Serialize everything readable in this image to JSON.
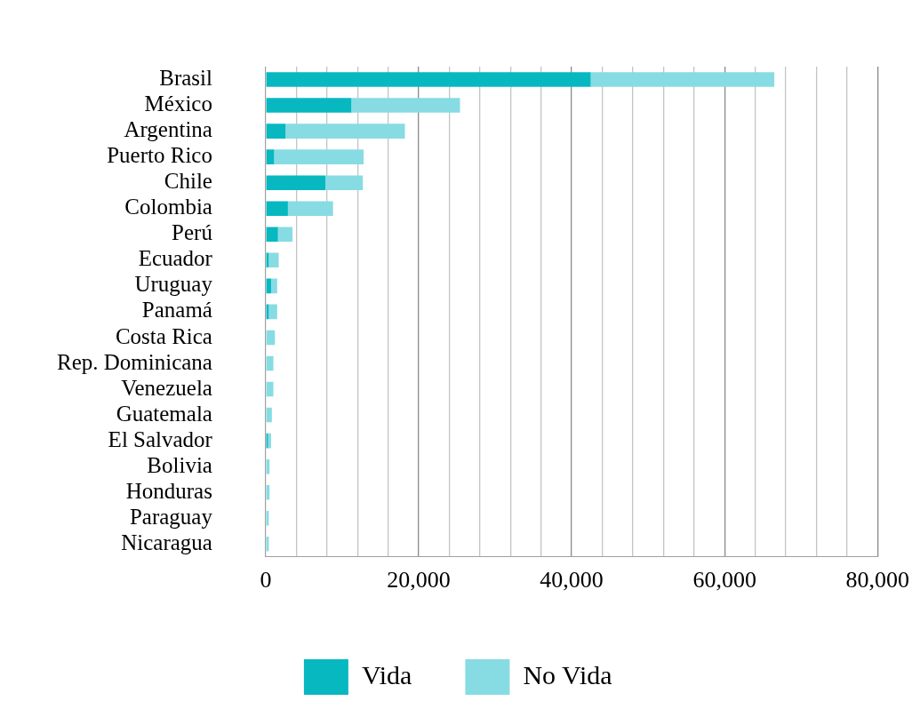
{
  "chart_data": {
    "type": "bar",
    "orientation": "horizontal",
    "stacked": true,
    "categories": [
      "Brasil",
      "México",
      "Argentina",
      "Puerto Rico",
      "Chile",
      "Colombia",
      "Perú",
      "Ecuador",
      "Uruguay",
      "Panamá",
      "Costa Rica",
      "Rep. Dominicana",
      "Venezuela",
      "Guatemala",
      "El Salvador",
      "Bolivia",
      "Honduras",
      "Paraguay",
      "Nicaragua"
    ],
    "series": [
      {
        "name": "Vida",
        "color": "#08b8c1",
        "values": [
          42500,
          11200,
          2600,
          1100,
          7800,
          2900,
          1600,
          400,
          700,
          400,
          0,
          0,
          0,
          0,
          300,
          0,
          0,
          0,
          0
        ]
      },
      {
        "name": "No Vida",
        "color": "#87dce3",
        "values": [
          24000,
          14200,
          15600,
          11700,
          4900,
          5900,
          1900,
          1300,
          800,
          1100,
          1200,
          1000,
          1000,
          800,
          400,
          500,
          500,
          400,
          400
        ]
      }
    ],
    "xlim": [
      0,
      80000
    ],
    "xticks": [
      0,
      {
        "value": 4000,
        "label": null
      },
      {
        "value": 8000,
        "label": null
      },
      {
        "value": 12000,
        "label": null
      },
      {
        "value": 16000,
        "label": null
      },
      {
        "value": 20000,
        "label": "20,000"
      },
      {
        "value": 24000,
        "label": null
      },
      {
        "value": 28000,
        "label": null
      },
      {
        "value": 32000,
        "label": null
      },
      {
        "value": 36000,
        "label": null
      },
      {
        "value": 40000,
        "label": "40,000"
      },
      {
        "value": 44000,
        "label": null
      },
      {
        "value": 48000,
        "label": null
      },
      {
        "value": 52000,
        "label": null
      },
      {
        "value": 56000,
        "label": null
      },
      {
        "value": 60000,
        "label": "60,000"
      },
      {
        "value": 64000,
        "label": null
      },
      {
        "value": 68000,
        "label": null
      },
      {
        "value": 72000,
        "label": null
      },
      {
        "value": 76000,
        "label": null
      },
      {
        "value": 80000,
        "label": "80,000"
      }
    ],
    "grid": "x",
    "legend": "bottom"
  }
}
